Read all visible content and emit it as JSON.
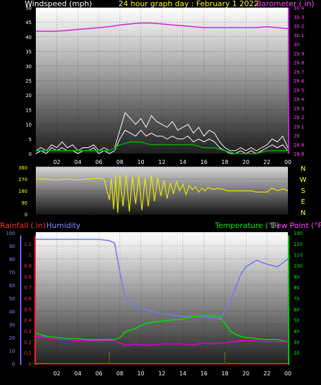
{
  "header": {
    "left_label": "Windspeed (mph)",
    "title": "24 hour graph day : February 1 2022",
    "right_label": "Barometer ( in)"
  },
  "colors": {
    "windspeed": "#ffffff",
    "gust": "#ffffff",
    "avg_wind": "#00b000",
    "barometer": "#d020d0",
    "wind_direction": "#e8e800",
    "humidity": "#7777ee",
    "temperature": "#00dd00",
    "dew_point": "#dd00dd",
    "rainfall": "#ff2222",
    "axis": "#ffffff"
  },
  "chart_data": [
    {
      "type": "line",
      "name": "wind-baro-panel",
      "x_unit": "hour",
      "x_range": [
        0,
        24
      ],
      "x_ticks": [
        "02",
        "04",
        "06",
        "08",
        "10",
        "12",
        "14",
        "16",
        "18",
        "20",
        "22",
        "00"
      ],
      "y_left_label": "Windspeed (mph)",
      "y_left_range": [
        0,
        50
      ],
      "y_left_ticks": [
        0,
        5,
        10,
        15,
        20,
        25,
        30,
        35,
        40,
        45,
        50
      ],
      "y_right_label": "Barometer ( in)",
      "y_right_range": [
        28.8,
        30.4
      ],
      "y_right_ticks": [
        "28.8",
        "28.9",
        "29",
        "29.1",
        "29.2",
        "29.3",
        "29.4",
        "29.5",
        "29.6",
        "29.7",
        "29.8",
        "29.9",
        "30",
        "30.1",
        "30.2",
        "30.3",
        "30.4"
      ],
      "series": [
        {
          "key": "barometer",
          "axis": "right",
          "x": [
            0,
            1,
            2,
            3,
            4,
            5,
            6,
            7,
            8,
            9,
            10,
            11,
            12,
            13,
            14,
            15,
            16,
            17,
            18,
            19,
            20,
            21,
            22,
            23,
            24
          ],
          "values": [
            30.14,
            30.14,
            30.14,
            30.15,
            30.16,
            30.17,
            30.18,
            30.19,
            30.21,
            30.22,
            30.23,
            30.23,
            30.22,
            30.21,
            30.2,
            30.19,
            30.18,
            30.18,
            30.18,
            30.18,
            30.18,
            30.18,
            30.19,
            30.18,
            30.17
          ]
        },
        {
          "key": "gust",
          "axis": "left",
          "x": [
            0,
            0.5,
            1,
            1.5,
            2,
            2.5,
            3,
            3.5,
            4,
            4.5,
            5,
            5.5,
            6,
            6.5,
            7,
            7.5,
            8,
            8.5,
            9,
            9.5,
            10,
            10.5,
            11,
            11.5,
            12,
            12.5,
            13,
            13.5,
            14,
            14.5,
            15,
            15.5,
            16,
            16.5,
            17,
            17.5,
            18,
            18.5,
            19,
            19.5,
            20,
            20.5,
            21,
            21.5,
            22,
            22.5,
            23,
            23.5,
            24
          ],
          "values": [
            1,
            2,
            1,
            3,
            2,
            4,
            2,
            3,
            1,
            2,
            2,
            3,
            1,
            2,
            1,
            2,
            8,
            14,
            12,
            10,
            12,
            9,
            13,
            11,
            10,
            9,
            11,
            8,
            9,
            10,
            7,
            9,
            6,
            8,
            7,
            4,
            2,
            1,
            1,
            2,
            1,
            2,
            1,
            2,
            3,
            5,
            4,
            6,
            2
          ]
        },
        {
          "key": "windspeed",
          "axis": "left",
          "x": [
            0,
            0.5,
            1,
            1.5,
            2,
            2.5,
            3,
            3.5,
            4,
            4.5,
            5,
            5.5,
            6,
            6.5,
            7,
            7.5,
            8,
            8.5,
            9,
            9.5,
            10,
            10.5,
            11,
            11.5,
            12,
            12.5,
            13,
            13.5,
            14,
            14.5,
            15,
            15.5,
            16,
            16.5,
            17,
            17.5,
            18,
            18.5,
            19,
            19.5,
            20,
            20.5,
            21,
            21.5,
            22,
            22.5,
            23,
            23.5,
            24
          ],
          "values": [
            0,
            1,
            0,
            2,
            1,
            2,
            1,
            1,
            0,
            1,
            1,
            2,
            0,
            1,
            0,
            1,
            5,
            8,
            7,
            6,
            8,
            6,
            7,
            6,
            6,
            5,
            6,
            5,
            5,
            6,
            4,
            5,
            4,
            5,
            4,
            2,
            1,
            0,
            0,
            1,
            0,
            1,
            0,
            1,
            2,
            3,
            2,
            3,
            1
          ]
        },
        {
          "key": "avg_wind",
          "axis": "left",
          "x": [
            0,
            1,
            2,
            3,
            4,
            5,
            6,
            7,
            8,
            9,
            10,
            11,
            12,
            13,
            14,
            15,
            16,
            17,
            18,
            19,
            20,
            21,
            22,
            23,
            24
          ],
          "values": [
            1,
            1,
            1,
            1,
            1,
            1,
            1,
            1,
            3,
            4,
            4,
            3,
            3,
            3,
            3,
            3,
            2,
            2,
            1,
            0,
            0,
            0,
            1,
            1,
            1
          ]
        }
      ]
    },
    {
      "type": "scatter",
      "name": "wind-direction-panel",
      "x_unit": "hour",
      "x_range": [
        0,
        24
      ],
      "y_range": [
        0,
        360
      ],
      "y_ticks": [
        0,
        90,
        180,
        270,
        360
      ],
      "compass_labels": [
        "N",
        "W",
        "S",
        "E",
        "N"
      ],
      "series": [
        {
          "key": "wind_direction",
          "x": [
            0,
            1,
            2,
            3,
            4,
            5,
            6,
            6.5,
            7,
            7.2,
            7.4,
            7.6,
            7.8,
            8,
            8.3,
            8.6,
            8.9,
            9.2,
            9.5,
            9.8,
            10.1,
            10.4,
            10.7,
            11,
            11.3,
            11.6,
            11.9,
            12.2,
            12.5,
            12.8,
            13.1,
            13.4,
            13.7,
            14,
            14.3,
            14.6,
            14.9,
            15.2,
            15.5,
            15.8,
            16.1,
            16.4,
            16.7,
            17,
            17.3,
            17.6,
            17.9,
            18.2,
            18.5,
            19,
            19.5,
            20,
            20.5,
            21,
            21.5,
            22,
            22.5,
            23,
            23.5,
            24
          ],
          "values": [
            270,
            270,
            265,
            270,
            265,
            270,
            275,
            270,
            110,
            280,
            40,
            290,
            10,
            300,
            60,
            310,
            20,
            290,
            80,
            300,
            30,
            280,
            60,
            300,
            100,
            280,
            140,
            260,
            120,
            240,
            160,
            250,
            180,
            230,
            150,
            220,
            190,
            210,
            170,
            200,
            180,
            205,
            195,
            190,
            200,
            195,
            190,
            180,
            180,
            180,
            180,
            180,
            180,
            170,
            170,
            170,
            200,
            180,
            195,
            180
          ]
        }
      ]
    },
    {
      "type": "line",
      "name": "humidity-temp-panel",
      "x_unit": "hour",
      "x_range": [
        0,
        24
      ],
      "x_ticks": [
        "02",
        "04",
        "06",
        "08",
        "10",
        "12",
        "14",
        "16",
        "18",
        "20",
        "22",
        "00"
      ],
      "header_labels": {
        "rainfall": "Rainfall (.in)",
        "humidity": "Humidity",
        "temperature": "Temperature (°F)",
        "dew_point": "Dew Point (°F)"
      },
      "y_humidity_range": [
        0,
        100
      ],
      "y_humidity_ticks": [
        0,
        10,
        20,
        30,
        40,
        50,
        60,
        70,
        80,
        90,
        100
      ],
      "y_rain_range": [
        0,
        1.2
      ],
      "y_rain_ticks": [
        "0",
        "0.1",
        "0.2",
        "0.3",
        "0.4",
        "0.5",
        "0.6",
        "0.7",
        "0.8",
        "0.9",
        "1",
        "1.1"
      ],
      "y_temp_range": [
        10,
        130
      ],
      "y_temp_ticks": [
        20,
        30,
        40,
        50,
        60,
        70,
        80,
        90,
        100,
        110,
        120,
        130
      ],
      "series": [
        {
          "key": "humidity",
          "axis": "humidity",
          "x": [
            0,
            1,
            2,
            3,
            4,
            5,
            6,
            7,
            7.5,
            8,
            8.5,
            9,
            9.5,
            10,
            11,
            12,
            13,
            14,
            15,
            16,
            17,
            17.5,
            18,
            18.5,
            19,
            19.5,
            20,
            21,
            22,
            23,
            24
          ],
          "values": [
            95,
            95,
            95,
            95,
            95,
            95,
            95,
            94,
            92,
            70,
            50,
            46,
            44,
            42,
            40,
            38,
            37,
            36,
            36,
            36,
            35,
            34,
            40,
            47,
            58,
            68,
            74,
            79,
            76,
            74,
            80
          ]
        },
        {
          "key": "temperature",
          "axis": "temp",
          "x": [
            0,
            1,
            2,
            3,
            4,
            5,
            6,
            7,
            7.5,
            8,
            8.5,
            9,
            9.5,
            10,
            11,
            12,
            13,
            14,
            15,
            16,
            17,
            17.5,
            18,
            18.5,
            19,
            19.5,
            20,
            21,
            22,
            23,
            24
          ],
          "values": [
            38,
            35,
            34,
            33,
            33,
            32,
            32,
            32,
            32,
            34,
            39,
            41,
            42,
            45,
            48,
            49,
            50,
            51,
            53,
            54,
            54,
            53,
            47,
            40,
            37,
            35,
            34,
            33,
            32,
            32,
            30
          ]
        },
        {
          "key": "dew_point",
          "axis": "temp",
          "x": [
            0,
            1,
            2,
            3,
            4,
            5,
            6,
            7,
            7.5,
            8,
            8.5,
            9,
            9.5,
            10,
            11,
            12,
            13,
            14,
            15,
            16,
            17,
            17.5,
            18,
            18.5,
            19,
            19.5,
            20,
            21,
            22,
            23,
            24
          ],
          "values": [
            35,
            34,
            32,
            32,
            31,
            31,
            31,
            31,
            31,
            29,
            27,
            27,
            28,
            27,
            27,
            28,
            28,
            28,
            27,
            29,
            28,
            29,
            29,
            30,
            30,
            31,
            31,
            31,
            30,
            30,
            30
          ]
        },
        {
          "key": "rainfall",
          "axis": "rain",
          "x": [
            0,
            24
          ],
          "values": [
            0,
            0
          ]
        }
      ]
    }
  ]
}
